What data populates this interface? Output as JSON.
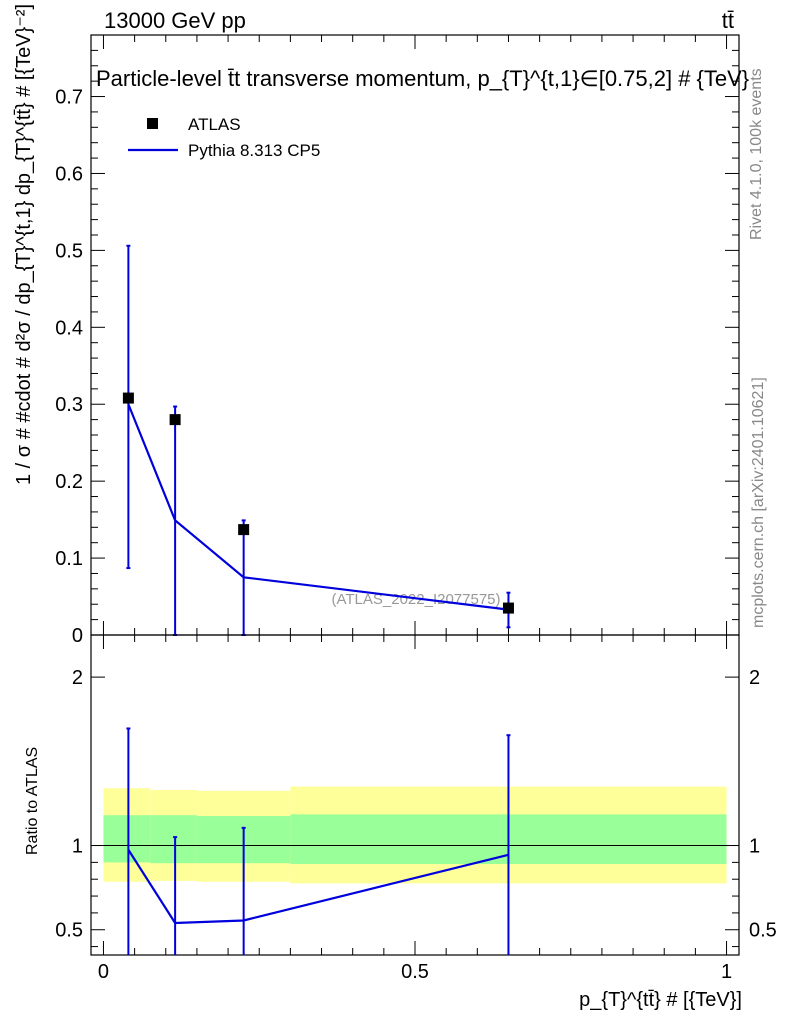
{
  "header": {
    "energy_label": "13000 GeV pp",
    "process_label": "tt̄"
  },
  "side_labels": {
    "rivet": "Rivet 4.1.0,  100k events",
    "mcplots": "mcplots.cern.ch [arXiv:2401.10621]"
  },
  "chart_data": [
    {
      "type": "line",
      "title": "Particle-level t̄t transverse momentum, p_{T}^{t,1}∈[0.75,2] # {TeV}",
      "ylabel": "1 / σ # #cdot # d²σ / dp_{T}^{t,1} dp_{T}^{tt̄} # [{TeV}⁻²]",
      "xlabel": "p_{T}^{tt̄} # [{TeV}]",
      "xlim": [
        -0.02,
        1.02
      ],
      "ylim": [
        0,
        0.78
      ],
      "yticks": [
        "0",
        "0.1",
        "0.2",
        "0.3",
        "0.4",
        "0.5",
        "0.6",
        "0.7"
      ],
      "watermark": "(ATLAS_2022_I2077575)",
      "legend_position": "top-left",
      "series": [
        {
          "name": "ATLAS",
          "kind": "points",
          "color": "#000000",
          "x": [
            0.04,
            0.115,
            0.225,
            0.65
          ],
          "y": [
            0.308,
            0.28,
            0.137,
            0.035
          ],
          "yerr_low": [
            0.221,
            0.28,
            0.137,
            0.025
          ],
          "yerr_high": [
            0.198,
            0.017,
            0.012,
            0.02
          ]
        },
        {
          "name": "Pythia 8.313 CP5",
          "kind": "line",
          "color": "#0000dd",
          "x": [
            0.04,
            0.115,
            0.225,
            0.65
          ],
          "y": [
            0.3,
            0.149,
            0.075,
            0.033
          ]
        }
      ]
    },
    {
      "type": "line",
      "ylabel": "Ratio to ATLAS",
      "xlim": [
        -0.02,
        1.02
      ],
      "ylim": [
        0.35,
        2.25
      ],
      "xticks": [
        "0",
        "0.5",
        "1"
      ],
      "yticks": [
        "0.5",
        "1",
        "2"
      ],
      "bands": {
        "bin_edges": [
          0.0,
          0.075,
          0.15,
          0.3,
          1.0
        ],
        "inner_low": [
          0.9,
          0.895,
          0.895,
          0.89
        ],
        "inner_high": [
          1.18,
          1.18,
          1.175,
          1.185
        ],
        "outer_low": [
          0.785,
          0.79,
          0.785,
          0.775
        ],
        "outer_high": [
          1.34,
          1.33,
          1.325,
          1.35
        ],
        "inner_color": "#99ff99",
        "outer_color": "#ffff99"
      },
      "series": [
        {
          "name": "Pythia 8.313 CP5",
          "color": "#0000dd",
          "x": [
            0.04,
            0.115,
            0.225,
            0.65
          ],
          "y": [
            0.975,
            0.54,
            0.555,
            0.945
          ],
          "yerr_low": [
            0.7,
            0.54,
            0.555,
            0.65
          ],
          "yerr_high": [
            0.72,
            0.51,
            0.55,
            0.71
          ]
        }
      ]
    }
  ]
}
